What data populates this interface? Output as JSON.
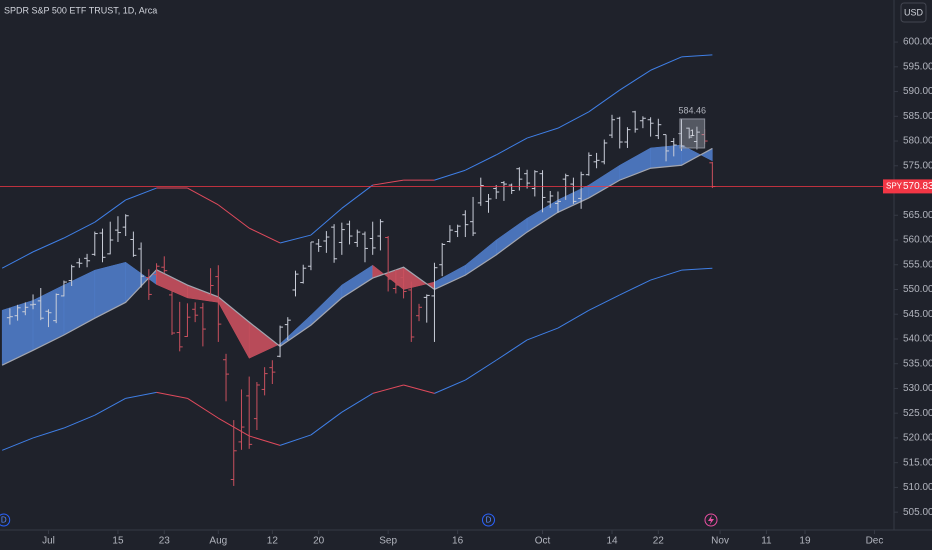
{
  "chart_data": {
    "type": "ohlc",
    "title": "SPDR S&P 500 ETF TRUST, 1D, Arca",
    "currency": "USD",
    "xlim": [
      -1.28,
      114.4
    ],
    "ylim": [
      502,
      608.5
    ],
    "xticks": [
      {
        "value": 5,
        "label": "Jul"
      },
      {
        "value": 14,
        "label": "15"
      },
      {
        "value": 20,
        "label": "23"
      },
      {
        "value": 27,
        "label": "Aug"
      },
      {
        "value": 34,
        "label": "12"
      },
      {
        "value": 40,
        "label": "20"
      },
      {
        "value": 49,
        "label": "Sep"
      },
      {
        "value": 58,
        "label": "16"
      },
      {
        "value": 69,
        "label": "Oct"
      },
      {
        "value": 78,
        "label": "14"
      },
      {
        "value": 84,
        "label": "22"
      },
      {
        "value": 92,
        "label": "Nov"
      },
      {
        "value": 98,
        "label": "11"
      },
      {
        "value": 103,
        "label": "19"
      },
      {
        "value": 112,
        "label": "Dec"
      }
    ],
    "yticks": [
      {
        "value": 505,
        "label": "505.00"
      },
      {
        "value": 510,
        "label": "510.00"
      },
      {
        "value": 515,
        "label": "515.00"
      },
      {
        "value": 520,
        "label": "520.00"
      },
      {
        "value": 525,
        "label": "525.00"
      },
      {
        "value": 530,
        "label": "530.00"
      },
      {
        "value": 535,
        "label": "535.00"
      },
      {
        "value": 540,
        "label": "540.00"
      },
      {
        "value": 545,
        "label": "545.00"
      },
      {
        "value": 550,
        "label": "550.00"
      },
      {
        "value": 555,
        "label": "555.00"
      },
      {
        "value": 560,
        "label": "560.00"
      },
      {
        "value": 565,
        "label": "565.00"
      },
      {
        "value": 570,
        "label": "570.00"
      },
      {
        "value": 575,
        "label": "575.00"
      },
      {
        "value": 580,
        "label": "580.00"
      },
      {
        "value": 585,
        "label": "585.00"
      },
      {
        "value": 590,
        "label": "590.00"
      },
      {
        "value": 595,
        "label": "595.00"
      },
      {
        "value": 600,
        "label": "600.00"
      }
    ],
    "bar_color": "#c9cdd8",
    "open": [
      544.3,
      544.7,
      545.5,
      546.9,
      547.7,
      545.6,
      543.7,
      548.7,
      551.8,
      555.4,
      556.3,
      557.1,
      561.4,
      557.2,
      562.0,
      562.6,
      560.1,
      558.2,
      552.4,
      553.0,
      554.5,
      548.9,
      541.3,
      540.5,
      546.0,
      546.3,
      548.9,
      552.6,
      535.8,
      511.6,
      519.2,
      528.5,
      523.9,
      529.8,
      534.2,
      536.5,
      542.9,
      549.9,
      551.4,
      554.7,
      559.2,
      559.8,
      562.6,
      559.5,
      563.2,
      559.5,
      561.2,
      560.3,
      560.8,
      560.5,
      550.2,
      552.4,
      549.9,
      544.7,
      548.4,
      548.7,
      555.0,
      559.7,
      561.7,
      565.1,
      563.7,
      567.5,
      567.8,
      570.4,
      571.6,
      571.1,
      574.4,
      573.4,
      570.4,
      573.4,
      567.7,
      567.4,
      572.3,
      571.3,
      568.4,
      573.2,
      575.8,
      575.8,
      581.2,
      584.6,
      579.8,
      585.9,
      584.1,
      584.3,
      581.1,
      581.3,
      579.9,
      581.5,
      582.6,
      579.9,
      581.3,
      575.6
    ],
    "high": [
      546.2,
      546.9,
      547.4,
      549.0,
      550.3,
      546.0,
      549.2,
      551.8,
      555.0,
      556.3,
      557.2,
      561.7,
      562.3,
      563.7,
      564.8,
      565.2,
      561.7,
      559.5,
      554.1,
      555.3,
      556.7,
      549.6,
      547.5,
      547.2,
      547.4,
      547.3,
      554.3,
      554.9,
      537.0,
      523.6,
      529.8,
      532.4,
      531.3,
      534.3,
      535.7,
      542.7,
      544.4,
      553.8,
      555.0,
      559.6,
      560.2,
      561.8,
      563.2,
      563.5,
      563.9,
      562.1,
      561.7,
      563.7,
      564.2,
      560.8,
      554.0,
      554.1,
      551.6,
      547.1,
      549.0,
      555.4,
      559.4,
      563.0,
      563.1,
      566.0,
      568.7,
      572.6,
      569.3,
      571.1,
      571.9,
      571.4,
      574.7,
      574.2,
      574.1,
      574.1,
      569.9,
      569.8,
      573.4,
      572.6,
      573.8,
      577.7,
      577.6,
      580.3,
      585.3,
      584.9,
      582.8,
      586.1,
      585.0,
      584.8,
      584.5,
      581.3,
      580.6,
      584.5,
      582.7,
      582.9,
      582.4,
      575.8
    ],
    "low": [
      542.9,
      543.7,
      544.8,
      546.0,
      543.8,
      542.4,
      543.2,
      548.6,
      550.7,
      554.4,
      554.5,
      556.8,
      555.5,
      557.1,
      559.6,
      560.8,
      556.6,
      550.4,
      547.9,
      551.0,
      553.3,
      540.8,
      537.5,
      540.4,
      543.4,
      538.5,
      548.6,
      539.4,
      527.4,
      510.3,
      517.6,
      517.8,
      521.6,
      528.6,
      530.9,
      536.3,
      539.8,
      548.6,
      551.2,
      553.9,
      557.6,
      557.4,
      555.4,
      557.0,
      559.1,
      558.6,
      555.5,
      557.0,
      557.9,
      549.6,
      549.2,
      548.2,
      539.4,
      543.6,
      543.3,
      539.4,
      552.7,
      559.5,
      560.6,
      560.6,
      560.8,
      566.9,
      565.5,
      568.3,
      567.9,
      569.3,
      570.0,
      570.4,
      568.8,
      565.6,
      566.5,
      565.5,
      568.1,
      567.3,
      566.3,
      573.0,
      574.5,
      575.3,
      580.6,
      578.5,
      578.6,
      581.7,
      582.6,
      580.9,
      580.4,
      575.9,
      576.9,
      578.0,
      580.5,
      578.3,
      579.4,
      570.5
    ],
    "close": [
      544.5,
      546.3,
      546.4,
      547.0,
      544.2,
      545.3,
      549.0,
      551.5,
      554.6,
      555.3,
      555.8,
      561.3,
      556.5,
      560.0,
      561.5,
      564.9,
      556.9,
      552.7,
      549.0,
      554.7,
      553.8,
      541.2,
      538.4,
      544.4,
      544.8,
      542.0,
      550.8,
      543.0,
      532.9,
      517.4,
      522.2,
      518.7,
      530.7,
      533.0,
      533.3,
      542.4,
      543.8,
      553.1,
      554.3,
      559.6,
      558.7,
      560.6,
      556.2,
      562.1,
      560.8,
      561.6,
      558.3,
      558.4,
      563.7,
      552.1,
      550.9,
      549.6,
      540.4,
      546.4,
      548.8,
      554.4,
      559.1,
      562.0,
      562.8,
      563.1,
      561.4,
      571.0,
      568.3,
      569.7,
      571.3,
      570.0,
      572.3,
      571.5,
      573.8,
      568.6,
      568.9,
      567.8,
      573.0,
      567.8,
      573.2,
      577.1,
      576.1,
      579.6,
      584.3,
      579.8,
      582.3,
      582.4,
      584.6,
      583.6,
      583.3,
      578.0,
      579.2,
      579.0,
      580.8,
      581.8,
      580.0,
      570.8
    ],
    "indicator": {
      "up_color": "#4f7cc9",
      "down_color": "#c9505e",
      "line_color": "#a3a6b0",
      "band_up_color": "#3f7fe6",
      "band_down_color": "#e04a5c",
      "x": [
        -1,
        3,
        7,
        11,
        15,
        19,
        23,
        27,
        31,
        35,
        39,
        43,
        47,
        51,
        55,
        59,
        63,
        67,
        71,
        75,
        79,
        83,
        87,
        91
      ],
      "fast": [
        545.8,
        547.8,
        550.9,
        553.9,
        555.5,
        551.0,
        548.3,
        547.4,
        536.1,
        539.0,
        544.8,
        550.9,
        554.9,
        550.0,
        551.5,
        554.9,
        560.0,
        564.4,
        568.1,
        571.1,
        575.1,
        578.6,
        579.2,
        576.0
      ],
      "slow": [
        534.7,
        537.7,
        540.8,
        544.2,
        547.4,
        554.0,
        550.9,
        548.5,
        543.4,
        538.5,
        542.8,
        548.3,
        552.3,
        554.5,
        550.0,
        552.9,
        557.0,
        561.6,
        565.6,
        568.5,
        572.1,
        574.5,
        575.1,
        578.5
      ],
      "upper": [
        554.3,
        557.6,
        560.4,
        563.6,
        568.1,
        570.5,
        570.5,
        567.1,
        562.4,
        559.4,
        561.0,
        566.4,
        571.1,
        572.1,
        572.1,
        574.1,
        577.2,
        580.6,
        582.6,
        585.9,
        590.3,
        594.3,
        597.0,
        597.4
      ],
      "lower": [
        517.5,
        520.0,
        522.0,
        524.6,
        528.0,
        529.2,
        528.0,
        524.0,
        520.4,
        518.5,
        520.6,
        525.2,
        529.0,
        530.7,
        529.0,
        531.7,
        535.7,
        539.8,
        542.2,
        545.8,
        548.9,
        551.9,
        553.9,
        554.3
      ]
    },
    "last_price": {
      "symbol": "SPY",
      "value": 570.83,
      "label": "570.83",
      "color": "#f23645"
    },
    "annotation": {
      "label": "584.46",
      "text": "1",
      "x": [
        86.8,
        90.0
      ],
      "y": [
        584.46,
        578.6
      ]
    },
    "events": [
      {
        "label": "D",
        "x": -0.8
      },
      {
        "label": "D",
        "x": 62
      }
    ]
  }
}
